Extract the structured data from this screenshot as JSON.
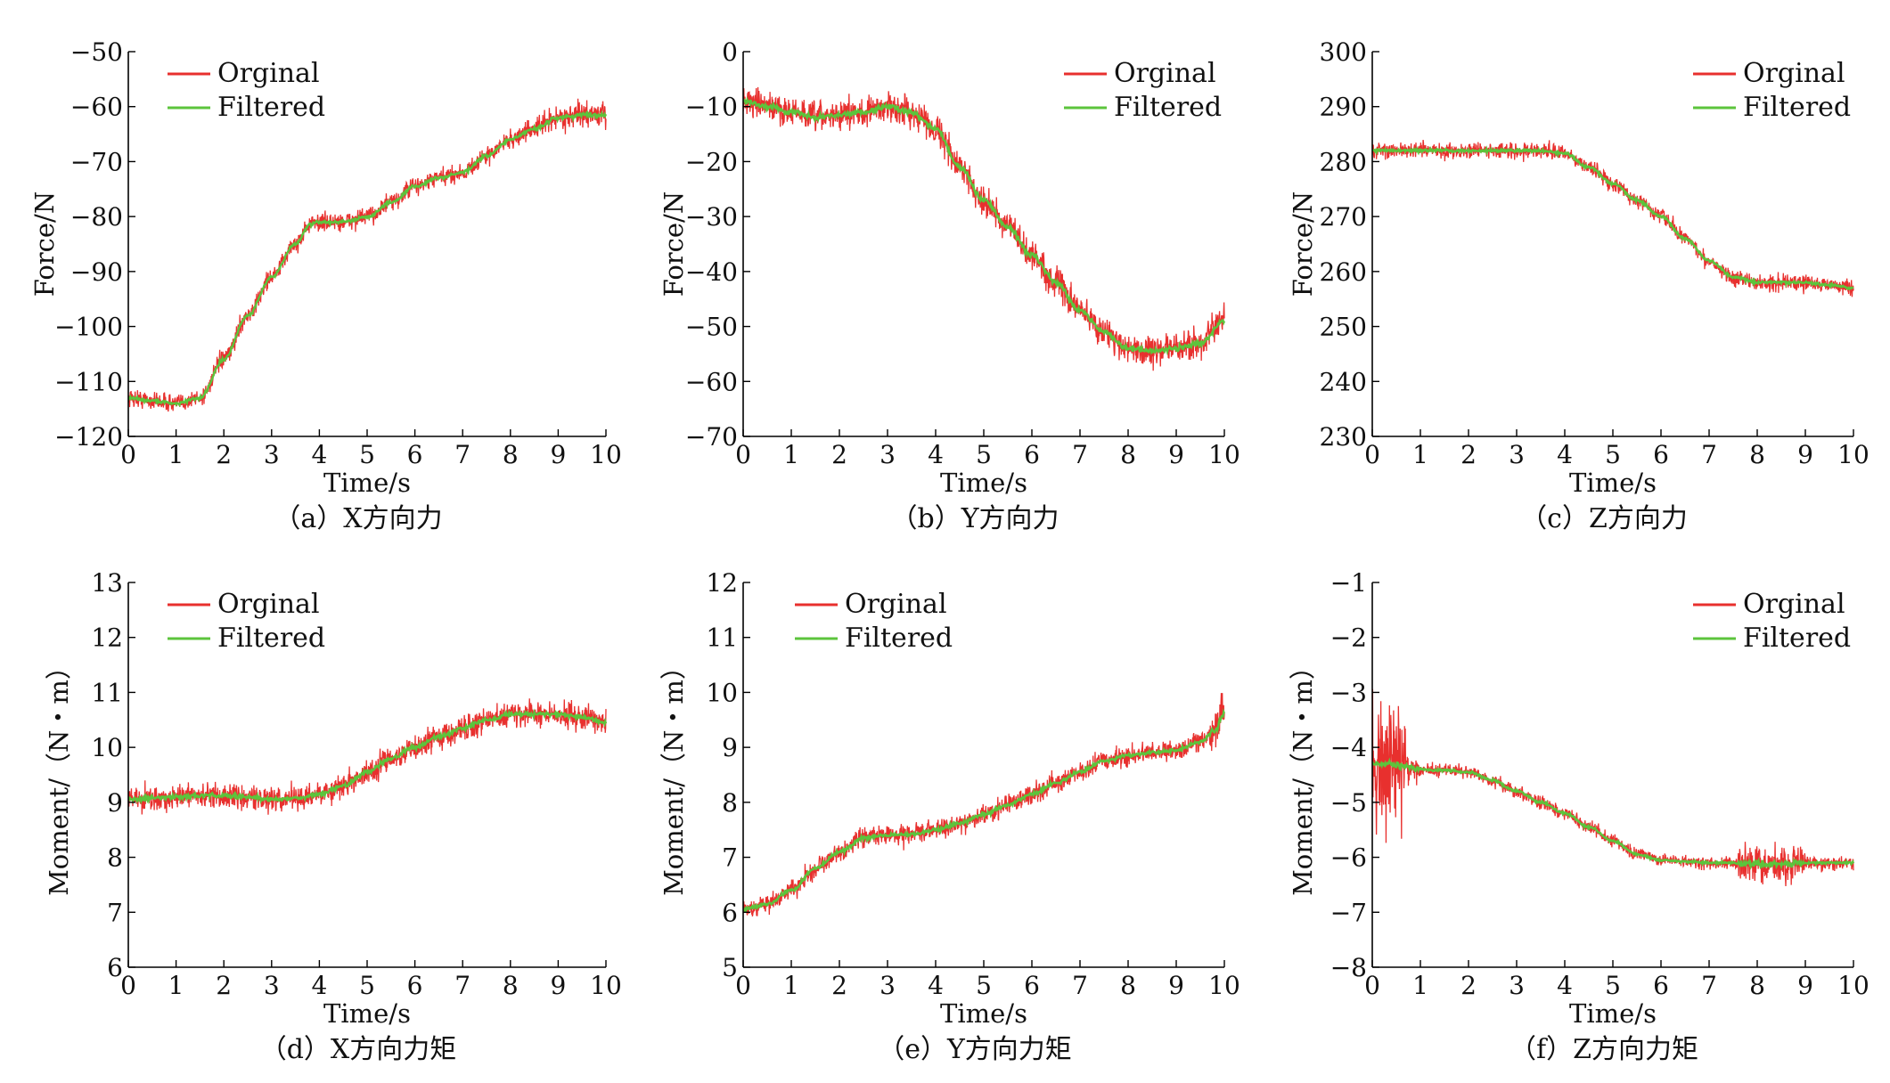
{
  "colors": {
    "original": "#e8302e",
    "filtered": "#5cc43c",
    "axis": "#000000"
  },
  "chart_data": [
    {
      "type": "line",
      "panel": "a",
      "caption": "（a）X方向力",
      "xlabel": "Time/s",
      "ylabel": "Force/N",
      "xlim": [
        0,
        10
      ],
      "ylim": [
        -120,
        -50
      ],
      "xticks": [
        "0",
        "1",
        "2",
        "3",
        "4",
        "5",
        "6",
        "7",
        "8",
        "9",
        "10"
      ],
      "yticks": [
        "−50",
        "−60",
        "−70",
        "−80",
        "−90",
        "−100",
        "−110",
        "−120"
      ],
      "ytick_values": [
        -50,
        -60,
        -70,
        -80,
        -90,
        -100,
        -110,
        -120
      ],
      "grid": false,
      "legend": "top-left",
      "series": [
        {
          "name": "Orginal",
          "noise": 1.6
        },
        {
          "name": "Filtered",
          "x": [
            0,
            0.5,
            1,
            1.5,
            2,
            2.5,
            3,
            3.5,
            3.8,
            4,
            4.5,
            5,
            5.5,
            6,
            6.5,
            7,
            7.5,
            8,
            8.5,
            9,
            9.5,
            10
          ],
          "y": [
            -113,
            -113.5,
            -114,
            -113,
            -106,
            -98,
            -91,
            -85,
            -81.5,
            -81,
            -81,
            -80,
            -77.5,
            -74.5,
            -73,
            -72,
            -69,
            -66,
            -64,
            -62,
            -61.5,
            -61.5
          ]
        }
      ]
    },
    {
      "type": "line",
      "panel": "b",
      "caption": "（b）Y方向力",
      "xlabel": "Time/s",
      "ylabel": "Force/N",
      "xlim": [
        0,
        10
      ],
      "ylim": [
        -70,
        0
      ],
      "xticks": [
        "0",
        "1",
        "2",
        "3",
        "4",
        "5",
        "6",
        "7",
        "8",
        "9",
        "10"
      ],
      "yticks": [
        "0",
        "−10",
        "−20",
        "−30",
        "−40",
        "−50",
        "−60",
        "−70"
      ],
      "ytick_values": [
        0,
        -10,
        -20,
        -30,
        -40,
        -50,
        -60,
        -70
      ],
      "grid": false,
      "legend": "top-right",
      "series": [
        {
          "name": "Orginal",
          "noise": 2.6
        },
        {
          "name": "Filtered",
          "x": [
            0,
            0.5,
            1,
            1.5,
            2,
            2.5,
            3,
            3.5,
            4,
            4.5,
            5,
            5.5,
            6,
            6.5,
            7,
            7.5,
            8,
            8.5,
            9,
            9.5,
            10
          ],
          "y": [
            -9,
            -10,
            -11,
            -12,
            -11.5,
            -11,
            -10,
            -11,
            -14,
            -21,
            -27,
            -32,
            -37,
            -42,
            -47,
            -51,
            -54,
            -54.5,
            -54,
            -53,
            -49
          ]
        }
      ]
    },
    {
      "type": "line",
      "panel": "c",
      "caption": "（c）Z方向力",
      "xlabel": "Time/s",
      "ylabel": "Force/N",
      "xlim": [
        0,
        10
      ],
      "ylim": [
        230,
        300
      ],
      "xticks": [
        "0",
        "1",
        "2",
        "3",
        "4",
        "5",
        "6",
        "7",
        "8",
        "9",
        "10"
      ],
      "yticks": [
        "300",
        "290",
        "280",
        "270",
        "260",
        "250",
        "240",
        "230"
      ],
      "ytick_values": [
        300,
        290,
        280,
        270,
        260,
        250,
        240,
        230
      ],
      "grid": false,
      "legend": "top-right",
      "series": [
        {
          "name": "Orginal",
          "noise": 1.4
        },
        {
          "name": "Filtered",
          "x": [
            0,
            0.5,
            1,
            1.5,
            2,
            2.5,
            3,
            3.5,
            4,
            4.5,
            5,
            5.5,
            6,
            6.5,
            7,
            7.5,
            8,
            8.5,
            9,
            9.5,
            10
          ],
          "y": [
            282,
            282,
            282,
            282,
            282,
            282,
            282,
            282,
            281.5,
            279,
            276,
            273,
            270,
            266,
            262,
            259,
            258,
            258,
            258,
            257.5,
            257
          ]
        }
      ]
    },
    {
      "type": "line",
      "panel": "d",
      "caption": "（d）X方向力矩",
      "xlabel": "Time/s",
      "ylabel": "Moment/（N・m）",
      "xlim": [
        0,
        10
      ],
      "ylim": [
        6,
        13
      ],
      "xticks": [
        "0",
        "1",
        "2",
        "3",
        "4",
        "5",
        "6",
        "7",
        "8",
        "9",
        "10"
      ],
      "yticks": [
        "13",
        "12",
        "11",
        "10",
        "9",
        "8",
        "7",
        "6"
      ],
      "ytick_values": [
        13,
        12,
        11,
        10,
        9,
        8,
        7,
        6
      ],
      "grid": false,
      "legend": "top-left",
      "series": [
        {
          "name": "Orginal",
          "noise": 0.22
        },
        {
          "name": "Filtered",
          "x": [
            0,
            0.5,
            1,
            1.5,
            2,
            2.5,
            3,
            3.5,
            4,
            4.5,
            5,
            5.5,
            6,
            6.5,
            7,
            7.5,
            8,
            8.5,
            9,
            9.5,
            10
          ],
          "y": [
            9.05,
            9.08,
            9.1,
            9.12,
            9.12,
            9.1,
            9.05,
            9.07,
            9.15,
            9.3,
            9.55,
            9.8,
            10,
            10.2,
            10.35,
            10.5,
            10.6,
            10.6,
            10.6,
            10.55,
            10.45
          ]
        }
      ]
    },
    {
      "type": "line",
      "panel": "e",
      "caption": "（e）Y方向力矩",
      "xlabel": "Time/s",
      "ylabel": "Moment/（N・m）",
      "xlim": [
        0,
        10
      ],
      "ylim": [
        5,
        12
      ],
      "xticks": [
        "0",
        "1",
        "2",
        "3",
        "4",
        "5",
        "6",
        "7",
        "8",
        "9",
        "10"
      ],
      "yticks": [
        "12",
        "11",
        "10",
        "9",
        "8",
        "7",
        "6",
        "5"
      ],
      "ytick_values": [
        12,
        11,
        10,
        9,
        8,
        7,
        6,
        5
      ],
      "grid": false,
      "legend": "top-left",
      "series": [
        {
          "name": "Orginal",
          "noise": 0.18
        },
        {
          "name": "Filtered",
          "x": [
            0,
            0.5,
            1,
            1.5,
            2,
            2.5,
            3,
            3.5,
            4,
            4.5,
            5,
            5.5,
            6,
            6.5,
            7,
            7.5,
            8,
            8.5,
            9,
            9.5,
            9.8,
            10
          ],
          "y": [
            6.05,
            6.15,
            6.4,
            6.8,
            7.1,
            7.35,
            7.4,
            7.42,
            7.5,
            7.62,
            7.78,
            7.95,
            8.15,
            8.35,
            8.55,
            8.75,
            8.85,
            8.9,
            8.95,
            9.1,
            9.3,
            9.6
          ]
        }
      ]
    },
    {
      "type": "line",
      "panel": "f",
      "caption": "（f）Z方向力矩",
      "xlabel": "Time/s",
      "ylabel": "Moment/（N・m）",
      "xlim": [
        0,
        10
      ],
      "ylim": [
        -8,
        -1
      ],
      "xticks": [
        "0",
        "1",
        "2",
        "3",
        "4",
        "5",
        "6",
        "7",
        "8",
        "9",
        "10"
      ],
      "yticks": [
        "−1",
        "−2",
        "−3",
        "−4",
        "−5",
        "−6",
        "−7",
        "−8"
      ],
      "ytick_values": [
        -1,
        -2,
        -3,
        -4,
        -5,
        -6,
        -7,
        -8
      ],
      "grid": false,
      "legend": "top-right",
      "series": [
        {
          "name": "Orginal",
          "noise": 0.12
        },
        {
          "name": "Filtered",
          "x": [
            0,
            0.3,
            0.7,
            1,
            1.5,
            2,
            2.5,
            3,
            3.5,
            4,
            4.5,
            5,
            5.5,
            6,
            6.5,
            7,
            7.5,
            8,
            8.5,
            9,
            9.5,
            10
          ],
          "y": [
            -4.3,
            -4.3,
            -4.35,
            -4.4,
            -4.42,
            -4.45,
            -4.6,
            -4.8,
            -5.0,
            -5.2,
            -5.45,
            -5.7,
            -5.95,
            -6.05,
            -6.08,
            -6.1,
            -6.1,
            -6.12,
            -6.12,
            -6.1,
            -6.1,
            -6.1
          ]
        }
      ]
    }
  ]
}
